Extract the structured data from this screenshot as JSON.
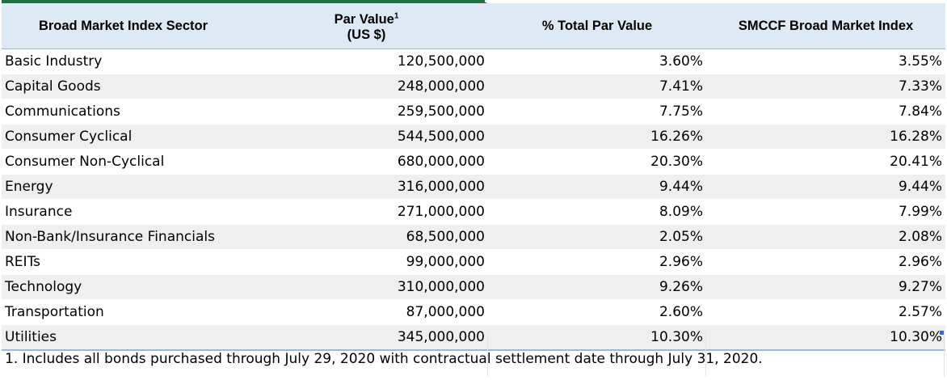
{
  "table": {
    "headers": {
      "sector": "Broad Market Index Sector",
      "par_value_line1": "Par Value",
      "par_value_superscript": "1",
      "par_value_line2": "(US $)",
      "pct_total": "% Total Par Value",
      "smccf_index": "SMCCF Broad Market Index"
    },
    "rows": [
      {
        "sector": "Basic Industry",
        "par_value": "120,500,000",
        "pct_total": "3.60%",
        "smccf_index": "3.55%"
      },
      {
        "sector": "Capital Goods",
        "par_value": "248,000,000",
        "pct_total": "7.41%",
        "smccf_index": "7.33%"
      },
      {
        "sector": "Communications",
        "par_value": "259,500,000",
        "pct_total": "7.75%",
        "smccf_index": "7.84%"
      },
      {
        "sector": "Consumer Cyclical",
        "par_value": "544,500,000",
        "pct_total": "16.26%",
        "smccf_index": "16.28%"
      },
      {
        "sector": "Consumer Non-Cyclical",
        "par_value": "680,000,000",
        "pct_total": "20.30%",
        "smccf_index": "20.41%"
      },
      {
        "sector": "Energy",
        "par_value": "316,000,000",
        "pct_total": "9.44%",
        "smccf_index": "9.44%"
      },
      {
        "sector": "Insurance",
        "par_value": "271,000,000",
        "pct_total": "8.09%",
        "smccf_index": "7.99%"
      },
      {
        "sector": "Non-Bank/Insurance Financials",
        "par_value": "68,500,000",
        "pct_total": "2.05%",
        "smccf_index": "2.08%"
      },
      {
        "sector": "REITs",
        "par_value": "99,000,000",
        "pct_total": "2.96%",
        "smccf_index": "2.96%"
      },
      {
        "sector": "Technology",
        "par_value": "310,000,000",
        "pct_total": "9.26%",
        "smccf_index": "9.27%"
      },
      {
        "sector": "Transportation",
        "par_value": "87,000,000",
        "pct_total": "2.60%",
        "smccf_index": "2.57%"
      },
      {
        "sector": "Utilities",
        "par_value": "345,000,000",
        "pct_total": "10.30%",
        "smccf_index": "10.30%"
      }
    ]
  },
  "footnote": "1. Includes all bonds purchased through July 29, 2020 with contractual settlement date through July 31, 2020.",
  "colors": {
    "header_bg": "#dde9f5",
    "band_bg": "#efefef",
    "accent_green": "#1e7145",
    "corner_red": "#e0201c",
    "handle_blue": "#2f6fc2"
  }
}
